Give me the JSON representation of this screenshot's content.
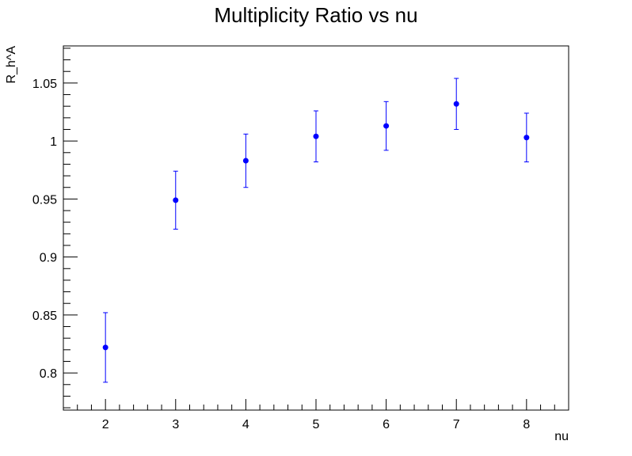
{
  "chart_data": {
    "type": "scatter",
    "title": "Multiplicity Ratio vs nu",
    "xlabel": "nu",
    "ylabel": "R_h^A",
    "xlim": [
      1.4,
      8.6
    ],
    "ylim": [
      0.768,
      1.082
    ],
    "x_ticks": [
      "2",
      "3",
      "4",
      "5",
      "6",
      "7",
      "8"
    ],
    "y_ticks": [
      "0.8",
      "0.85",
      "0.9",
      "0.95",
      "1",
      "1.05"
    ],
    "grid": false,
    "marker_color": "#0000ff",
    "points": [
      {
        "x": 2,
        "y": 0.822,
        "err": 0.03
      },
      {
        "x": 3,
        "y": 0.949,
        "err": 0.025
      },
      {
        "x": 4,
        "y": 0.983,
        "err": 0.023
      },
      {
        "x": 5,
        "y": 1.004,
        "err": 0.022
      },
      {
        "x": 6,
        "y": 1.013,
        "err": 0.021
      },
      {
        "x": 7,
        "y": 1.032,
        "err": 0.022
      },
      {
        "x": 8,
        "y": 1.003,
        "err": 0.021
      }
    ]
  }
}
